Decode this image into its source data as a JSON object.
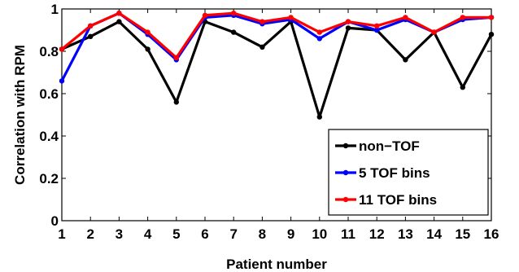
{
  "chart_data": {
    "type": "line",
    "xlabel": "Patient number",
    "ylabel": "Correlation with RPM",
    "xlim": [
      1,
      16
    ],
    "ylim": [
      0,
      1
    ],
    "x_ticks": [
      "1",
      "2",
      "3",
      "4",
      "5",
      "6",
      "7",
      "8",
      "9",
      "10",
      "11",
      "12",
      "13",
      "14",
      "15",
      "16"
    ],
    "y_ticks": [
      "0",
      "0.2",
      "0.4",
      "0.6",
      "0.8",
      "1"
    ],
    "grid": false,
    "legend_position": "bottom-right",
    "x": [
      1,
      2,
      3,
      4,
      5,
      6,
      7,
      8,
      9,
      10,
      11,
      12,
      13,
      14,
      15,
      16
    ],
    "series": [
      {
        "name": "non−TOF",
        "color": "#000000",
        "values": [
          0.81,
          0.87,
          0.94,
          0.81,
          0.56,
          0.94,
          0.89,
          0.82,
          0.94,
          0.49,
          0.91,
          0.9,
          0.76,
          0.89,
          0.63,
          0.88
        ]
      },
      {
        "name": "5 TOF bins",
        "color": "#0000ff",
        "values": [
          0.66,
          0.92,
          0.98,
          0.88,
          0.76,
          0.96,
          0.97,
          0.93,
          0.95,
          0.86,
          0.94,
          0.9,
          0.95,
          0.89,
          0.95,
          0.96
        ]
      },
      {
        "name": "11 TOF bins",
        "color": "#ff0000",
        "values": [
          0.81,
          0.92,
          0.98,
          0.89,
          0.77,
          0.97,
          0.98,
          0.94,
          0.96,
          0.89,
          0.94,
          0.92,
          0.96,
          0.89,
          0.96,
          0.96
        ]
      }
    ]
  }
}
